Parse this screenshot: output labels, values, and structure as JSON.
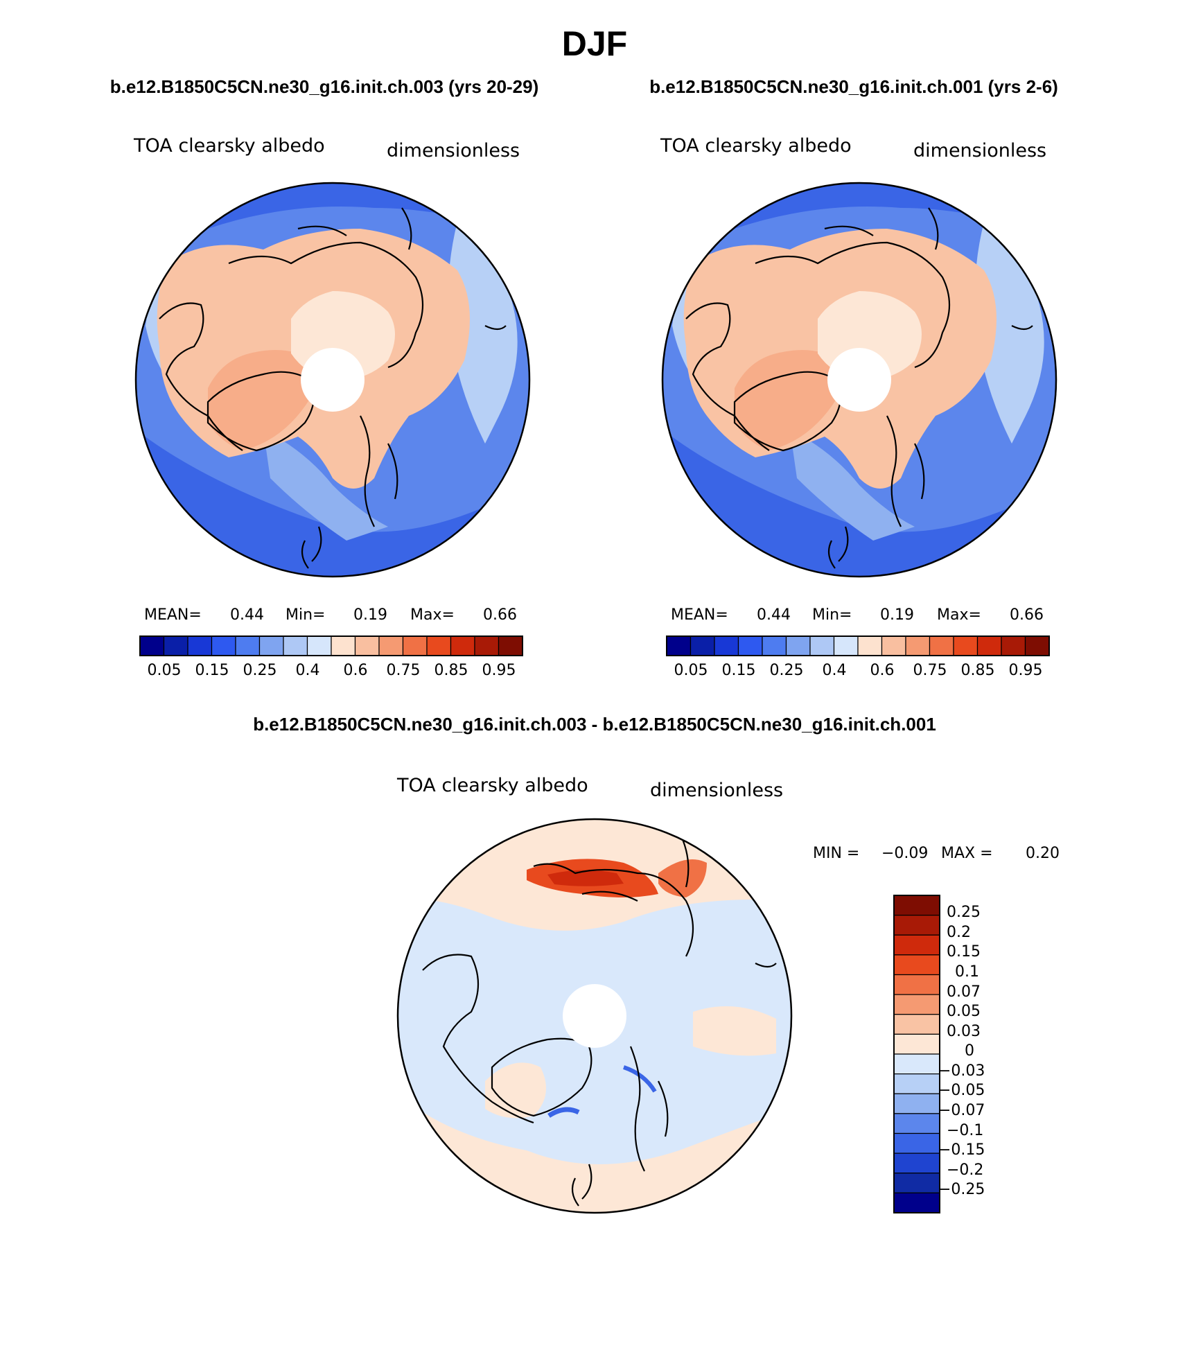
{
  "title": "DJF",
  "chart_data": [
    {
      "type": "heatmap",
      "projection": "north polar stereographic",
      "title": "b.e12.B1850C5CN.ne30_g16.init.ch.003 (yrs 20-29)",
      "variable": "TOA clearsky albedo",
      "units": "dimensionless",
      "mean_label": "MEAN=",
      "mean_value": "0.44",
      "min_label": "Min=",
      "min_value": "0.19",
      "max_label": "Max=",
      "max_value": "0.66",
      "levels": [
        "0.05",
        "0.15",
        "0.25",
        "0.4",
        "0.6",
        "0.75",
        "0.85",
        "0.95"
      ]
    },
    {
      "type": "heatmap",
      "projection": "north polar stereographic",
      "title": "b.e12.B1850C5CN.ne30_g16.init.ch.001 (yrs 2-6)",
      "variable": "TOA clearsky albedo",
      "units": "dimensionless",
      "mean_label": "MEAN=",
      "mean_value": "0.44",
      "min_label": "Min=",
      "min_value": "0.19",
      "max_label": "Max=",
      "max_value": "0.66",
      "levels": [
        "0.05",
        "0.15",
        "0.25",
        "0.4",
        "0.6",
        "0.75",
        "0.85",
        "0.95"
      ]
    },
    {
      "type": "heatmap",
      "projection": "north polar stereographic",
      "title": "b.e12.B1850C5CN.ne30_g16.init.ch.003 - b.e12.B1850C5CN.ne30_g16.init.ch.001",
      "variable": "TOA clearsky albedo",
      "units": "dimensionless",
      "min_label": "MIN =",
      "min_value": "−0.09",
      "max_label": "MAX =",
      "max_value": "0.20",
      "levels": [
        "0.25",
        "0.2",
        "0.15",
        "0.1",
        "0.07",
        "0.05",
        "0.03",
        "0",
        "−0.03",
        "−0.05",
        "−0.07",
        "−0.1",
        "−0.15",
        "−0.2",
        "−0.25"
      ]
    }
  ],
  "colors": {
    "main_scale": [
      "#00008b",
      "#0a1fa8",
      "#1838d6",
      "#2e59f0",
      "#4e7cf0",
      "#7fa4f0",
      "#aec8f5",
      "#d6e6fb",
      "#fde2cf",
      "#f9bfa0",
      "#f59a72",
      "#f07145",
      "#e84a1e",
      "#cf2a0c",
      "#a81a06",
      "#7e0d02"
    ],
    "diff_scale_top_down": [
      "#7e0d02",
      "#a81a06",
      "#cf2a0c",
      "#e84a1e",
      "#f07145",
      "#f59a72",
      "#f9c3a4",
      "#fde7d6",
      "#d9e8fb",
      "#b7d0f6",
      "#8fb1f0",
      "#5c86ec",
      "#3a65e6",
      "#1f44d0",
      "#102ba4",
      "#00008b"
    ]
  }
}
